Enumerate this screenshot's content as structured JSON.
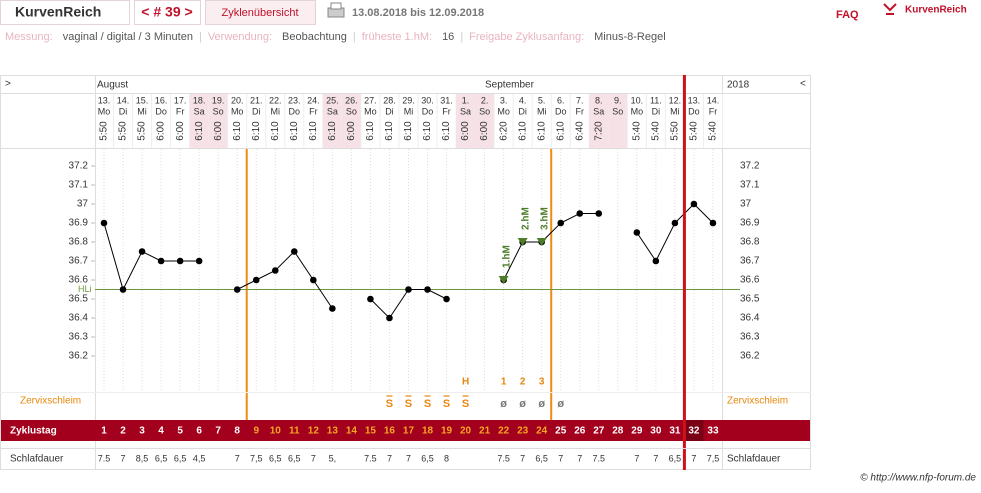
{
  "header": {
    "brand": "KurvenReich",
    "cycle_nav": "< # 39 >",
    "tab": "Zyklenübersicht",
    "date_range": "13.08.2018 bis 12.09.2018",
    "faq": "FAQ",
    "logo": "KurvenReich"
  },
  "info": {
    "separator": "|",
    "items": [
      {
        "label": "Messung:",
        "value": "vaginal / digital / 3 Minuten"
      },
      {
        "label": "Verwendung:",
        "value": "Beobachtung"
      },
      {
        "label": "früheste 1.hM:",
        "value": "16"
      },
      {
        "label": "Freigabe Zyklusanfang:",
        "value": "Minus-8-Regel"
      }
    ]
  },
  "chart_data": {
    "type": "line",
    "color": "#000000",
    "nav_prev": ">",
    "nav_next": "<",
    "months": [
      "August",
      "September"
    ],
    "year": "2018",
    "categories": [
      "13.",
      "14.",
      "15.",
      "16.",
      "17.",
      "18.",
      "19.",
      "20.",
      "21.",
      "22.",
      "23.",
      "24.",
      "25.",
      "26.",
      "27.",
      "28.",
      "29.",
      "30.",
      "31.",
      "1.",
      "2.",
      "3.",
      "4.",
      "5.",
      "6.",
      "7.",
      "8.",
      "9.",
      "10.",
      "11.",
      "12.",
      "13.",
      "14."
    ],
    "weekdays": [
      "Mo",
      "Di",
      "Mi",
      "Do",
      "Fr",
      "Sa",
      "So",
      "Mo",
      "Di",
      "Mi",
      "Do",
      "Fr",
      "Sa",
      "So",
      "Mo",
      "Di",
      "Mi",
      "Do",
      "Fr",
      "Sa",
      "So",
      "Mo",
      "Di",
      "Mi",
      "Do",
      "Fr",
      "Sa",
      "So",
      "Mo",
      "Di",
      "Mi",
      "Do",
      "Fr"
    ],
    "weekend_shading": [
      false,
      false,
      false,
      false,
      false,
      true,
      true,
      false,
      false,
      false,
      false,
      false,
      true,
      true,
      false,
      false,
      false,
      false,
      false,
      true,
      true,
      false,
      false,
      false,
      false,
      false,
      true,
      true,
      false,
      false,
      false,
      false,
      false
    ],
    "times": [
      "5:50",
      "5:50",
      "5:50",
      "6:00",
      "6:00",
      "6:10",
      "6:00",
      "6:10",
      "6:10",
      "6:10",
      "6:10",
      "6:10",
      "6:10",
      "6:00",
      "6:10",
      "6:10",
      "6:10",
      "6:10",
      "6:10",
      "6:00",
      "6:00",
      "6:20",
      "6:10",
      "6:10",
      "6:10",
      "6:40",
      "7:20",
      null,
      "5:40",
      "5:40",
      "5:50",
      "5:40",
      "5:40"
    ],
    "values": [
      36.9,
      36.55,
      36.75,
      36.7,
      36.7,
      36.7,
      null,
      36.55,
      36.6,
      36.65,
      36.75,
      36.6,
      36.45,
      null,
      36.5,
      36.4,
      36.55,
      36.55,
      36.5,
      null,
      null,
      36.6,
      36.8,
      36.8,
      36.9,
      36.95,
      36.95,
      null,
      36.85,
      36.7,
      36.9,
      37,
      36.9
    ],
    "ylim": [
      36.2,
      37.2
    ],
    "yticks": [
      37.2,
      37.1,
      37,
      36.9,
      36.8,
      36.7,
      36.6,
      36.5,
      36.4,
      36.3,
      36.2
    ],
    "hli_label": "HLi",
    "hli_value": 36.55,
    "hli_color": "#6a9a3a",
    "hm_labels": [
      null,
      null,
      null,
      null,
      null,
      null,
      null,
      null,
      null,
      null,
      null,
      null,
      null,
      null,
      null,
      null,
      null,
      null,
      null,
      null,
      null,
      "1.hM",
      "2.hM",
      "3.hM",
      null,
      null,
      null,
      null,
      null,
      null,
      null,
      null,
      null
    ],
    "peak_labels": [
      null,
      null,
      null,
      null,
      null,
      null,
      null,
      null,
      null,
      null,
      null,
      null,
      null,
      null,
      null,
      null,
      null,
      null,
      null,
      "H",
      null,
      "1",
      "2",
      "3",
      null,
      null,
      null,
      null,
      null,
      null,
      null,
      null,
      null
    ],
    "mucus_label": "Zervixschleim",
    "mucus": [
      null,
      null,
      null,
      null,
      null,
      null,
      null,
      null,
      null,
      null,
      null,
      null,
      null,
      null,
      null,
      "S",
      "S",
      "S",
      "S",
      "S",
      null,
      "ø",
      "ø",
      "ø",
      "ø",
      null,
      null,
      null,
      null,
      null,
      null,
      null,
      null
    ],
    "mucus_colors": {
      "S": "#e8870e",
      "ø": "#777777"
    },
    "cycle_label": "Zyklustag",
    "cycle_days": [
      1,
      2,
      3,
      4,
      5,
      6,
      7,
      8,
      9,
      10,
      11,
      12,
      13,
      14,
      15,
      16,
      17,
      18,
      19,
      20,
      21,
      22,
      23,
      24,
      25,
      26,
      27,
      28,
      29,
      30,
      31,
      32,
      33
    ],
    "fertile_start_day": 9,
    "fertile_end_day": 24,
    "today_day": 32,
    "sleep_label": "Schlafdauer",
    "sleep": [
      "7.5",
      "7",
      "8,5",
      "6,5",
      "6,5",
      "4,5",
      null,
      "7",
      "7,5",
      "6,5",
      "6,5",
      "7",
      "5,",
      null,
      "7.5",
      "7",
      "7",
      "6,5",
      "8",
      null,
      null,
      "7.5",
      "7",
      "6,5",
      "7",
      "7",
      "7.5",
      null,
      "7",
      "7",
      "6,5",
      "7",
      "7,5"
    ]
  },
  "footer": "© http://www.nfp-forum.de"
}
